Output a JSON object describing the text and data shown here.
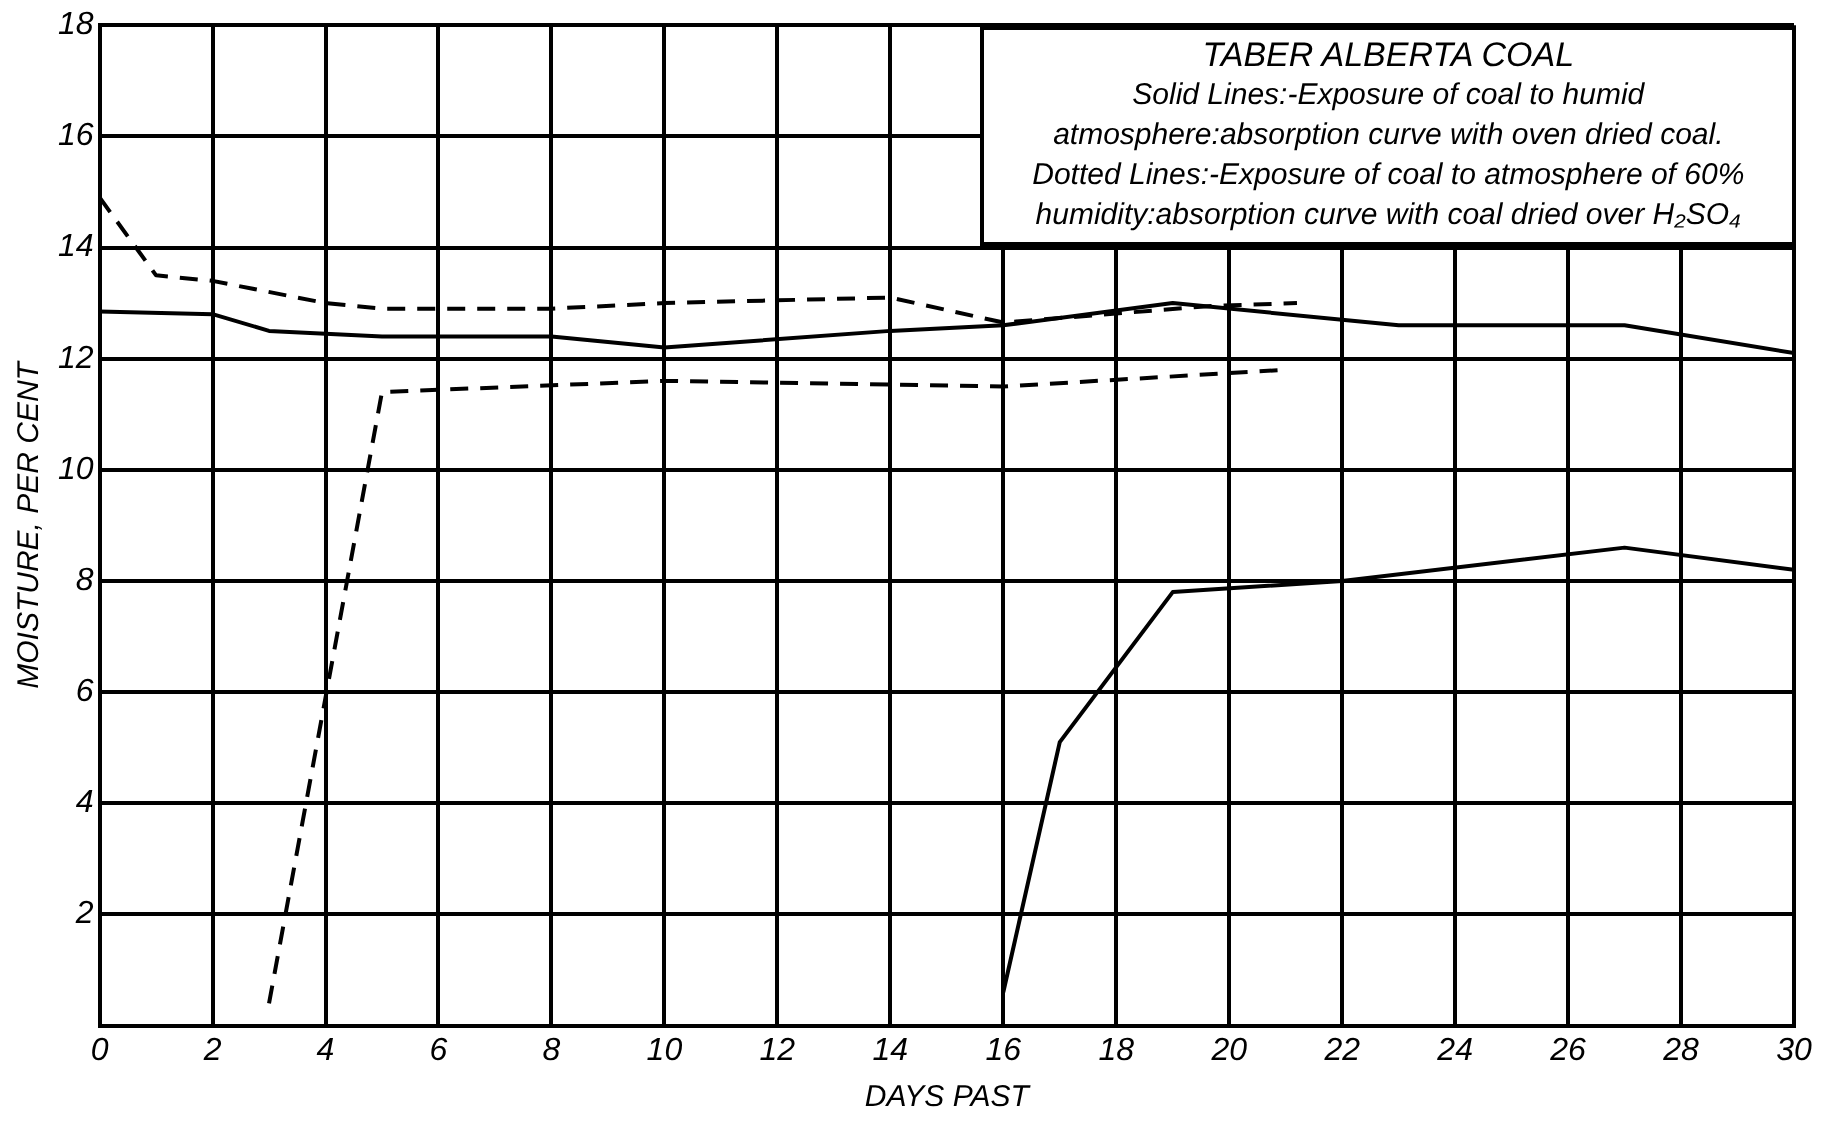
{
  "chart_data": {
    "type": "line",
    "title": "TABER ALBERTA COAL",
    "annotations": [
      "Solid Lines:-Exposure of coal to humid",
      "atmosphere:absorption curve with oven dried coal.",
      "Dotted Lines:-Exposure of coal to atmosphere of 60%",
      "humidity:absorption curve with coal dried over H₂SO₄"
    ],
    "xlabel": "DAYS PAST",
    "ylabel": "MOISTURE, PER CENT",
    "xlim": [
      0,
      30
    ],
    "xticks": [
      0,
      2,
      4,
      6,
      8,
      10,
      12,
      14,
      16,
      18,
      20,
      22,
      24,
      26,
      28,
      30
    ],
    "ylim": [
      0,
      18
    ],
    "yticks": [
      {
        "value": 0,
        "label": null
      },
      2,
      4,
      6,
      8,
      10,
      12,
      14,
      16,
      18
    ],
    "grid": true,
    "legend": false,
    "marker": "none",
    "series": [
      {
        "color": "#000000",
        "line_style": "solid",
        "x": [
          0,
          2,
          3,
          5,
          8,
          10,
          14,
          16,
          19,
          23,
          27,
          30
        ],
        "values": [
          12.85,
          12.8,
          12.5,
          12.4,
          12.4,
          12.2,
          12.5,
          12.6,
          13.0,
          12.6,
          12.6,
          12.1
        ]
      },
      {
        "color": "#000000",
        "line_style": "dashed",
        "x": [
          0,
          1,
          2,
          4,
          5,
          8,
          10,
          14,
          16,
          19.7,
          21.2
        ],
        "values": [
          14.9,
          13.5,
          13.4,
          13.0,
          12.9,
          12.9,
          13.0,
          13.1,
          12.65,
          12.95,
          13.0
        ]
      },
      {
        "color": "#000000",
        "line_style": "dashed",
        "x": [
          3,
          5,
          10,
          16,
          21
        ],
        "values": [
          0.4,
          11.4,
          11.6,
          11.5,
          11.8
        ]
      },
      {
        "color": "#000000",
        "line_style": "solid",
        "x": [
          16,
          17,
          19,
          22,
          27,
          30
        ],
        "values": [
          0.6,
          5.1,
          7.8,
          8.0,
          8.6,
          8.2
        ]
      }
    ]
  }
}
